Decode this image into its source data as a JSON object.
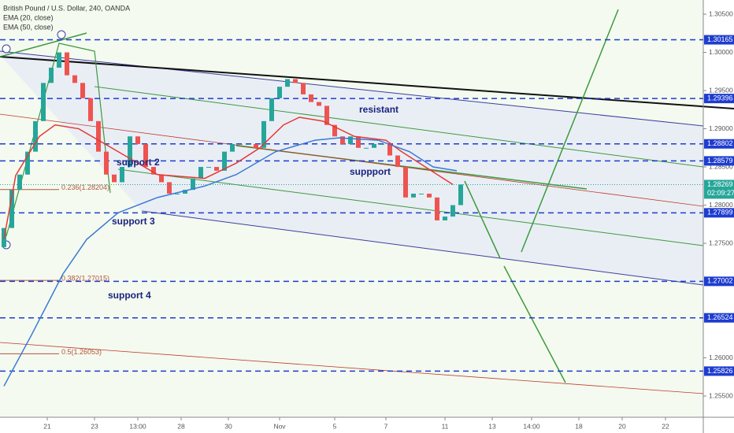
{
  "chart_data": {
    "type": "candlestick",
    "title": "British Pound / U.S. Dollar, 240, OANDA",
    "up_color": "#26a69a",
    "down_color": "#ef5350",
    "x": [
      0.5,
      1.5,
      2.5,
      3.5,
      4.5,
      5.5,
      6.5,
      7.5,
      8.5,
      9.5,
      10.5,
      11.5,
      12.5,
      13.5,
      14.5,
      15.5,
      16.5,
      17.5,
      18.5,
      19.5,
      20.5,
      21.5,
      22.5,
      23.5,
      24.5,
      25.5,
      26.5,
      27.5,
      28.5,
      29.5,
      30.5,
      31.5,
      32.5,
      33.5,
      34.5,
      35.5,
      36.5,
      37.5,
      38.5,
      39.5,
      40.5,
      41.5,
      42.5,
      43.5,
      44.5,
      45.5,
      46.5,
      47.5,
      48.5,
      49.5,
      50.5,
      51.5,
      52.5,
      53.5,
      54.5,
      55.5,
      56.5,
      57.5,
      58.5
    ],
    "open": [
      1.2745,
      1.277,
      1.282,
      1.284,
      1.287,
      1.291,
      1.296,
      1.298,
      1.3,
      1.297,
      1.296,
      1.294,
      1.291,
      1.287,
      1.284,
      1.283,
      1.285,
      1.289,
      1.288,
      1.285,
      1.284,
      1.283,
      1.2815,
      1.2815,
      1.282,
      1.2835,
      1.285,
      1.285,
      1.2845,
      1.287,
      1.288,
      1.288,
      1.288,
      1.2875,
      1.291,
      1.294,
      1.2955,
      1.2965,
      1.296,
      1.2945,
      1.2935,
      1.293,
      1.2905,
      1.289,
      1.288,
      1.289,
      1.2875,
      1.2875,
      1.288,
      1.288,
      1.2865,
      1.285,
      1.281,
      1.2815,
      1.2815,
      1.281,
      1.278,
      1.2785,
      1.28
    ],
    "close": [
      1.277,
      1.282,
      1.284,
      1.287,
      1.291,
      1.296,
      1.298,
      1.3,
      1.297,
      1.296,
      1.294,
      1.291,
      1.287,
      1.284,
      1.283,
      1.285,
      1.289,
      1.288,
      1.285,
      1.284,
      1.283,
      1.2815,
      1.2815,
      1.282,
      1.2835,
      1.285,
      1.285,
      1.2845,
      1.287,
      1.288,
      1.288,
      1.288,
      1.2875,
      1.291,
      1.294,
      1.2955,
      1.2965,
      1.296,
      1.2945,
      1.2935,
      1.293,
      1.2905,
      1.289,
      1.288,
      1.289,
      1.2875,
      1.2875,
      1.288,
      1.288,
      1.2865,
      1.285,
      1.281,
      1.2815,
      1.2815,
      1.281,
      1.278,
      1.2785,
      1.28,
      1.2827
    ],
    "series": [
      {
        "name": "EMA (20, close)",
        "color": "#e53935",
        "x": [
          0.5,
          2,
          5,
          7,
          10,
          15,
          20,
          26,
          30,
          33,
          36,
          38,
          41,
          45,
          49,
          51,
          54,
          57.5
        ],
        "values": [
          1.2756,
          1.2839,
          1.289,
          1.2905,
          1.29,
          1.287,
          1.284,
          1.2835,
          1.2855,
          1.2875,
          1.2905,
          1.2915,
          1.291,
          1.289,
          1.2885,
          1.287,
          1.285,
          1.2827
        ]
      },
      {
        "name": "EMA (50, close)",
        "color": "#3a78d6",
        "x": [
          0.5,
          4,
          8,
          11,
          15,
          20,
          26,
          30,
          35,
          40,
          43,
          48,
          52,
          55,
          58
        ],
        "values": [
          1.2563,
          1.263,
          1.271,
          1.2755,
          1.279,
          1.281,
          1.2825,
          1.284,
          1.287,
          1.2885,
          1.2888,
          1.2885,
          1.287,
          1.285,
          1.2845
        ]
      }
    ],
    "xlim": [
      0,
      89.3
    ],
    "xticks": [
      {
        "value": 6,
        "label": "21"
      },
      {
        "value": 12,
        "label": "23"
      },
      {
        "value": 17.5,
        "label": "13:00"
      },
      {
        "value": 23,
        "label": "28"
      },
      {
        "value": 29,
        "label": "30"
      },
      {
        "value": 35.5,
        "label": "Nov"
      },
      {
        "value": 42.5,
        "label": "5"
      },
      {
        "value": 49,
        "label": "7"
      },
      {
        "value": 56.5,
        "label": "11"
      },
      {
        "value": 62.5,
        "label": "13"
      },
      {
        "value": 67.5,
        "label": "14:00"
      },
      {
        "value": 73.5,
        "label": "18"
      },
      {
        "value": 79,
        "label": "20"
      },
      {
        "value": 84.5,
        "label": "22"
      }
    ],
    "ylim": [
      1.25222,
      1.30686
    ],
    "yticks": [
      {
        "value": 1.305,
        "label": "1.30500"
      },
      {
        "value": 1.3,
        "label": "1.30000"
      },
      {
        "value": 1.295,
        "label": "1.29500"
      },
      {
        "value": 1.29,
        "label": "1.29000"
      },
      {
        "value": 1.285,
        "label": "1.28500"
      },
      {
        "value": 1.28,
        "label": "1.28000"
      },
      {
        "value": 1.275,
        "label": "1.27500"
      },
      {
        "value": 1.26,
        "label": "1.26000"
      },
      {
        "value": 1.255,
        "label": "1.25500"
      }
    ],
    "price_levels": [
      {
        "value": 1.30165,
        "label": "1.30165"
      },
      {
        "value": 1.29396,
        "label": "1.29396"
      },
      {
        "value": 1.28802,
        "label": "1.28802"
      },
      {
        "value": 1.28579,
        "label": "1.28579"
      },
      {
        "value": 1.27899,
        "label": "1.27899"
      },
      {
        "value": 1.27002,
        "label": "1.27002"
      },
      {
        "value": 1.26524,
        "label": "1.26524"
      },
      {
        "value": 1.25826,
        "label": "1.25826"
      }
    ],
    "level_color": "#1e3ccf",
    "current_price": {
      "value": 1.28269,
      "label": "1.28269",
      "countdown": "02:09:27",
      "color": "#26a69a"
    },
    "fib_levels": [
      {
        "value": 1.28204,
        "label": "0.236(1.28204)"
      },
      {
        "value": 1.27015,
        "label": "0.382(1.27015)"
      },
      {
        "value": 1.26053,
        "label": "0.5(1.26053)"
      }
    ],
    "annotations": [
      "resistant",
      "suppport",
      "support 2",
      "support 3",
      "support 4"
    ]
  }
}
